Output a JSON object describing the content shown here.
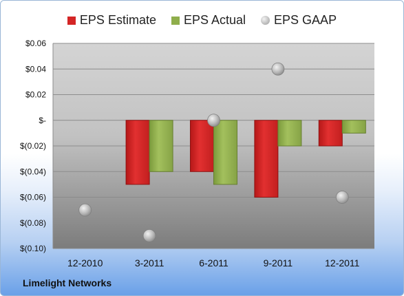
{
  "legend": {
    "estimate_label": "EPS Estimate",
    "actual_label": "EPS Actual",
    "gaap_label": "EPS GAAP"
  },
  "company_name": "Limelight Networks",
  "colors": {
    "estimate": "#d42525",
    "actual": "#8fae4b",
    "gaap": "#b4b4b4",
    "plot_bg_top": "#d0d0d0",
    "plot_bg_bottom": "#7a7a7a"
  },
  "chart_data": {
    "type": "bar",
    "title": "",
    "xlabel": "",
    "ylabel": "",
    "categories": [
      "12-2010",
      "3-2011",
      "6-2011",
      "9-2011",
      "12-2011"
    ],
    "series": [
      {
        "name": "EPS Estimate",
        "values": [
          null,
          -0.05,
          -0.04,
          -0.06,
          -0.02
        ]
      },
      {
        "name": "EPS Actual",
        "values": [
          null,
          -0.04,
          -0.05,
          -0.02,
          -0.01
        ]
      },
      {
        "name": "EPS GAAP",
        "type": "scatter",
        "values": [
          -0.07,
          -0.09,
          0.0,
          0.04,
          -0.06
        ]
      }
    ],
    "ylim": [
      -0.1,
      0.06
    ],
    "yticks": [
      0.06,
      0.04,
      0.02,
      0.0,
      -0.02,
      -0.04,
      -0.06,
      -0.08,
      -0.1
    ],
    "ytick_labels": [
      "$0.06",
      "$0.04",
      "$0.02",
      "$-",
      "$(0.02)",
      "$(0.04)",
      "$(0.06)",
      "$(0.08)",
      "$(0.10)"
    ],
    "grid": true,
    "legend_position": "top"
  }
}
